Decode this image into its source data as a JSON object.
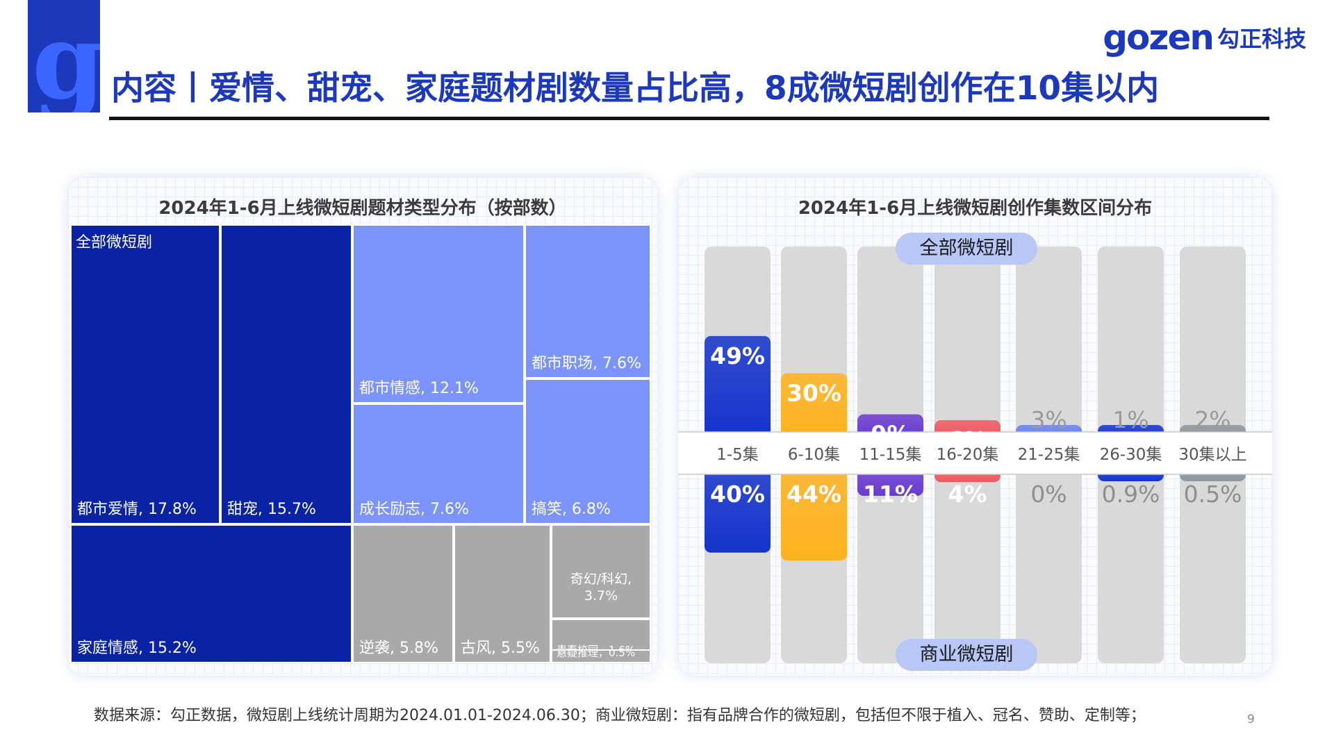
{
  "header": {
    "brand_en": "gozen",
    "brand_cn": "勾正科技",
    "title": "内容丨爱情、甜宠、家庭题材剧数量占比高，8成微短剧创作在10集以内"
  },
  "footer": {
    "source": "数据来源：勾正数据，微短剧上线统计周期为2024.01.01-2024.06.30；商业微短剧：指有品牌合作的微短剧，包括但不限于植入、冠名、赞助、定制等；",
    "page_number": "9"
  },
  "colors": {
    "accent": "#1c39bb",
    "dark_blue": "#0a23a4",
    "mid_blue": "#7b93fb",
    "gray": "#a9a9a9"
  },
  "chart_data": [
    {
      "type": "treemap",
      "title": "2024年1-6月上线微短剧题材类型分布（按部数）",
      "root_label": "全部微短剧",
      "items": [
        {
          "label": "都市爱情, 17.8%",
          "name": "都市爱情",
          "value": 17.8,
          "group": "dark"
        },
        {
          "label": "甜宠, 15.7%",
          "name": "甜宠",
          "value": 15.7,
          "group": "dark"
        },
        {
          "label": "家庭情感, 15.2%",
          "name": "家庭情感",
          "value": 15.2,
          "group": "dark"
        },
        {
          "label": "都市情感, 12.1%",
          "name": "都市情感",
          "value": 12.1,
          "group": "mid"
        },
        {
          "label": "都市职场, 7.6%",
          "name": "都市职场",
          "value": 7.6,
          "group": "mid"
        },
        {
          "label": "成长励志, 7.6%",
          "name": "成长励志",
          "value": 7.6,
          "group": "mid"
        },
        {
          "label": "搞笑, 6.8%",
          "name": "搞笑",
          "value": 6.8,
          "group": "mid"
        },
        {
          "label": "逆袭, 5.8%",
          "name": "逆袭",
          "value": 5.8,
          "group": "gray"
        },
        {
          "label": "古风, 5.5%",
          "name": "古风",
          "value": 5.5,
          "group": "gray"
        },
        {
          "label": "奇幻/科幻, 3.7%",
          "name": "奇幻/科幻",
          "value": 3.7,
          "group": "gray"
        },
        {
          "label": "青春校园，1.6%",
          "name": "青春校园",
          "value": 1.6,
          "group": "gray"
        },
        {
          "label": "悬疑推理，0.5%",
          "name": "悬疑推理",
          "value": 0.5,
          "group": "gray"
        }
      ]
    },
    {
      "type": "bar",
      "title": "2024年1-6月上线微短剧创作集数区间分布",
      "categories": [
        "1-5集",
        "6-10集",
        "11-15集",
        "16-20集",
        "21-25集",
        "26-30集",
        "30集以上"
      ],
      "series": [
        {
          "name": "全部微短剧",
          "values": [
            49,
            30,
            9,
            6,
            3,
            1,
            2
          ],
          "labels": [
            "49%",
            "30%",
            "9%",
            "6%",
            "3%",
            "1%",
            "2%"
          ]
        },
        {
          "name": "商业微短剧",
          "values": [
            40,
            44,
            11,
            4,
            0,
            0.9,
            0.5
          ],
          "labels": [
            "40%",
            "44%",
            "11%",
            "4%",
            "0%",
            "0.9%",
            "0.5%"
          ]
        }
      ],
      "bar_colors": [
        "#1433cc",
        "#ffb21e",
        "#6a3bd2",
        "#ef5a60",
        "#6683f0",
        "#1536d0",
        "#8e969e"
      ],
      "ylim": [
        0,
        50
      ]
    }
  ]
}
